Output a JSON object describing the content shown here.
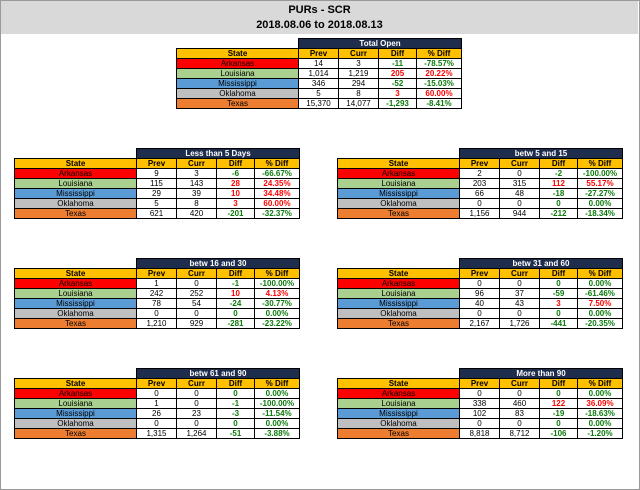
{
  "header": {
    "title": "PURs - SCR",
    "date_range": "2018.08.06 to 2018.08.13"
  },
  "columns": [
    "State",
    "Prev",
    "Curr",
    "Diff",
    "% Diff"
  ],
  "state_colors": {
    "Arkansas": "#ff0000",
    "Louisiana": "#a9d08e",
    "Mississippi": "#5b9bd5",
    "Oklahoma": "#bfbfbf",
    "Texas": "#ed7d31"
  },
  "tables": [
    {
      "title": "Total Open",
      "rows": [
        {
          "state": "Arkansas",
          "prev": "14",
          "curr": "3",
          "diff": "-11",
          "pct": "-78.57%"
        },
        {
          "state": "Louisiana",
          "prev": "1,014",
          "curr": "1,219",
          "diff": "205",
          "pct": "20.22%"
        },
        {
          "state": "Mississippi",
          "prev": "346",
          "curr": "294",
          "diff": "-52",
          "pct": "-15.03%"
        },
        {
          "state": "Oklahoma",
          "prev": "5",
          "curr": "8",
          "diff": "3",
          "pct": "60.00%"
        },
        {
          "state": "Texas",
          "prev": "15,370",
          "curr": "14,077",
          "diff": "-1,293",
          "pct": "-8.41%"
        }
      ]
    },
    {
      "title": "Less than 5 Days",
      "rows": [
        {
          "state": "Arkansas",
          "prev": "9",
          "curr": "3",
          "diff": "-6",
          "pct": "-66.67%"
        },
        {
          "state": "Louisiana",
          "prev": "115",
          "curr": "143",
          "diff": "28",
          "pct": "24.35%"
        },
        {
          "state": "Mississippi",
          "prev": "29",
          "curr": "39",
          "diff": "10",
          "pct": "34.48%"
        },
        {
          "state": "Oklahoma",
          "prev": "5",
          "curr": "8",
          "diff": "3",
          "pct": "60.00%"
        },
        {
          "state": "Texas",
          "prev": "621",
          "curr": "420",
          "diff": "-201",
          "pct": "-32.37%"
        }
      ]
    },
    {
      "title": "betw 5 and 15",
      "rows": [
        {
          "state": "Arkansas",
          "prev": "2",
          "curr": "0",
          "diff": "-2",
          "pct": "-100.00%"
        },
        {
          "state": "Louisiana",
          "prev": "203",
          "curr": "315",
          "diff": "112",
          "pct": "55.17%"
        },
        {
          "state": "Mississippi",
          "prev": "66",
          "curr": "48",
          "diff": "-18",
          "pct": "-27.27%"
        },
        {
          "state": "Oklahoma",
          "prev": "0",
          "curr": "0",
          "diff": "0",
          "pct": "0.00%"
        },
        {
          "state": "Texas",
          "prev": "1,156",
          "curr": "944",
          "diff": "-212",
          "pct": "-18.34%"
        }
      ]
    },
    {
      "title": "betw 16 and 30",
      "rows": [
        {
          "state": "Arkansas",
          "prev": "1",
          "curr": "0",
          "diff": "-1",
          "pct": "-100.00%"
        },
        {
          "state": "Louisiana",
          "prev": "242",
          "curr": "252",
          "diff": "10",
          "pct": "4.13%"
        },
        {
          "state": "Mississippi",
          "prev": "78",
          "curr": "54",
          "diff": "-24",
          "pct": "-30.77%"
        },
        {
          "state": "Oklahoma",
          "prev": "0",
          "curr": "0",
          "diff": "0",
          "pct": "0.00%"
        },
        {
          "state": "Texas",
          "prev": "1,210",
          "curr": "929",
          "diff": "-281",
          "pct": "-23.22%"
        }
      ]
    },
    {
      "title": "betw 31 and 60",
      "rows": [
        {
          "state": "Arkansas",
          "prev": "0",
          "curr": "0",
          "diff": "0",
          "pct": "0.00%"
        },
        {
          "state": "Louisiana",
          "prev": "96",
          "curr": "37",
          "diff": "-59",
          "pct": "-61.46%"
        },
        {
          "state": "Mississippi",
          "prev": "40",
          "curr": "43",
          "diff": "3",
          "pct": "7.50%"
        },
        {
          "state": "Oklahoma",
          "prev": "0",
          "curr": "0",
          "diff": "0",
          "pct": "0.00%"
        },
        {
          "state": "Texas",
          "prev": "2,167",
          "curr": "1,726",
          "diff": "-441",
          "pct": "-20.35%"
        }
      ]
    },
    {
      "title": "betw 61 and 90",
      "rows": [
        {
          "state": "Arkansas",
          "prev": "0",
          "curr": "0",
          "diff": "0",
          "pct": "0.00%"
        },
        {
          "state": "Louisiana",
          "prev": "1",
          "curr": "0",
          "diff": "-1",
          "pct": "-100.00%"
        },
        {
          "state": "Mississippi",
          "prev": "26",
          "curr": "23",
          "diff": "-3",
          "pct": "-11.54%"
        },
        {
          "state": "Oklahoma",
          "prev": "0",
          "curr": "0",
          "diff": "0",
          "pct": "0.00%"
        },
        {
          "state": "Texas",
          "prev": "1,315",
          "curr": "1,264",
          "diff": "-51",
          "pct": "-3.88%"
        }
      ]
    },
    {
      "title": "More than 90",
      "rows": [
        {
          "state": "Arkansas",
          "prev": "0",
          "curr": "0",
          "diff": "0",
          "pct": "0.00%"
        },
        {
          "state": "Louisiana",
          "prev": "338",
          "curr": "460",
          "diff": "122",
          "pct": "36.09%"
        },
        {
          "state": "Mississippi",
          "prev": "102",
          "curr": "83",
          "diff": "-19",
          "pct": "-18.63%"
        },
        {
          "state": "Oklahoma",
          "prev": "0",
          "curr": "0",
          "diff": "0",
          "pct": "0.00%"
        },
        {
          "state": "Texas",
          "prev": "8,818",
          "curr": "8,712",
          "diff": "-106",
          "pct": "-1.20%"
        }
      ]
    }
  ]
}
